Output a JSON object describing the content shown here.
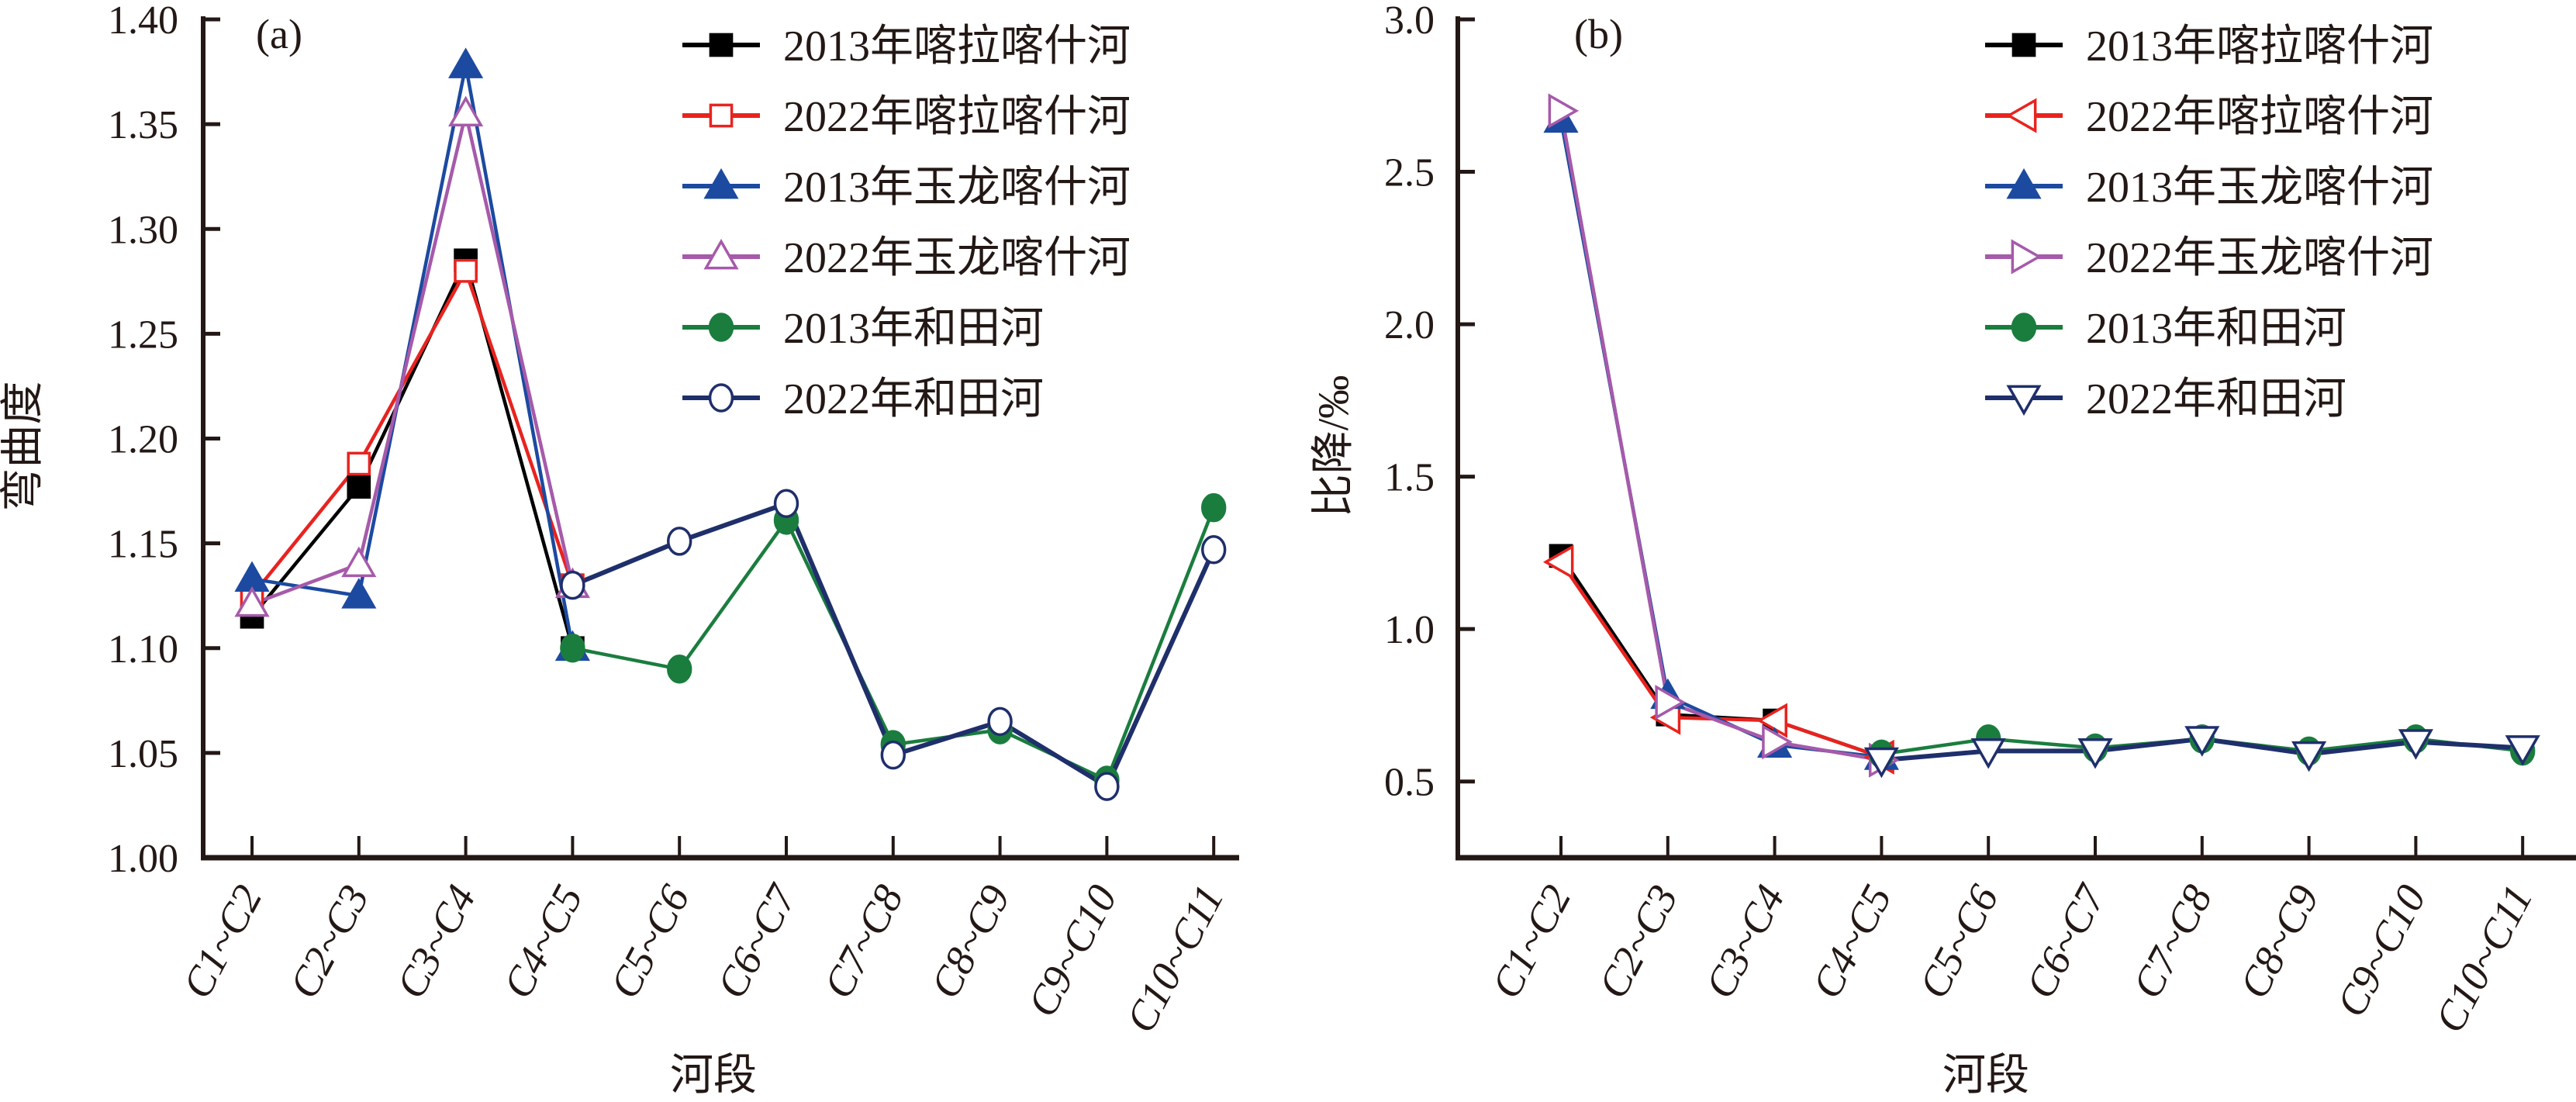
{
  "chart_data": [
    {
      "type": "line",
      "panel_label": "(a)",
      "title": "",
      "xlabel": "河段",
      "ylabel": "弯曲度",
      "ylim": [
        1.0,
        1.4
      ],
      "yticks": [
        1.0,
        1.05,
        1.1,
        1.15,
        1.2,
        1.25,
        1.3,
        1.35,
        1.4
      ],
      "ytick_labels": [
        "1.00",
        "1.05",
        "1.10",
        "1.15",
        "1.20",
        "1.25",
        "1.30",
        "1.35",
        "1.40"
      ],
      "grid": false,
      "legend_position": "top-right",
      "categories": [
        "C1~C2",
        "C2~C3",
        "C3~C4",
        "C4~C5",
        "C5~C6",
        "C6~C7",
        "C7~C8",
        "C8~C9",
        "C9~C10",
        "C10~C11"
      ],
      "series": [
        {
          "name": "2013年喀拉喀什河",
          "color": "#000000",
          "marker": "square",
          "filled": true,
          "values": [
            1.115,
            1.177,
            1.285,
            1.1,
            null,
            null,
            null,
            null,
            null,
            null
          ]
        },
        {
          "name": "2022年喀拉喀什河",
          "color": "#e8231f",
          "marker": "square",
          "filled": false,
          "values": [
            1.125,
            1.188,
            1.28,
            1.13,
            null,
            null,
            null,
            null,
            null,
            null
          ]
        },
        {
          "name": "2013年玉龙喀什河",
          "color": "#1c4aa0",
          "marker": "triangle-up",
          "filled": true,
          "values": [
            1.133,
            1.125,
            1.378,
            1.1,
            null,
            null,
            null,
            null,
            null,
            null
          ]
        },
        {
          "name": "2022年玉龙喀什河",
          "color": "#a65aaa",
          "marker": "triangle-up",
          "filled": false,
          "values": [
            1.121,
            1.14,
            1.355,
            1.13,
            null,
            null,
            null,
            null,
            null,
            null
          ]
        },
        {
          "name": "2013年和田河",
          "color": "#1a7d3e",
          "marker": "circle",
          "filled": true,
          "values": [
            null,
            null,
            null,
            1.1,
            1.09,
            1.161,
            1.054,
            1.061,
            1.037,
            1.167
          ]
        },
        {
          "name": "2022年和田河",
          "color": "#1f2f6b",
          "marker": "circle",
          "filled": false,
          "values": [
            null,
            null,
            null,
            1.13,
            1.151,
            1.169,
            1.049,
            1.065,
            1.034,
            1.147
          ]
        }
      ]
    },
    {
      "type": "line",
      "panel_label": "(b)",
      "title": "",
      "xlabel": "河段",
      "ylabel": "比降/‰",
      "ylim": [
        0.25,
        3.0
      ],
      "yticks": [
        0.5,
        1.0,
        1.5,
        2.0,
        2.5,
        3.0
      ],
      "ytick_labels": [
        "0.5",
        "1.0",
        "1.5",
        "2.0",
        "2.5",
        "3.0"
      ],
      "grid": false,
      "legend_position": "top-right",
      "categories": [
        "C1~C2",
        "C2~C3",
        "C3~C4",
        "C4~C5",
        "C5~C6",
        "C6~C7",
        "C7~C8",
        "C8~C9",
        "C9~C10",
        "C10~C11"
      ],
      "series": [
        {
          "name": "2013年喀拉喀什河",
          "color": "#000000",
          "marker": "square",
          "filled": true,
          "values": [
            1.24,
            0.72,
            0.7,
            0.58,
            null,
            null,
            null,
            null,
            null,
            null
          ]
        },
        {
          "name": "2022年喀拉喀什河",
          "color": "#e8231f",
          "marker": "triangle-left",
          "filled": false,
          "values": [
            1.22,
            0.71,
            0.7,
            0.58,
            null,
            null,
            null,
            null,
            null,
            null
          ]
        },
        {
          "name": "2013年玉龙喀什河",
          "color": "#1c4aa0",
          "marker": "triangle-up",
          "filled": true,
          "values": [
            2.67,
            0.78,
            0.62,
            0.58,
            null,
            null,
            null,
            null,
            null,
            null
          ]
        },
        {
          "name": "2022年玉龙喀什河",
          "color": "#a65aaa",
          "marker": "triangle-right",
          "filled": false,
          "values": [
            2.7,
            0.76,
            0.63,
            0.57,
            null,
            null,
            null,
            null,
            null,
            null
          ]
        },
        {
          "name": "2013年和田河",
          "color": "#1a7d3e",
          "marker": "circle",
          "filled": true,
          "values": [
            null,
            null,
            null,
            0.59,
            0.64,
            0.61,
            0.64,
            0.6,
            0.64,
            0.6
          ]
        },
        {
          "name": "2022年和田河",
          "color": "#1f2f6b",
          "marker": "triangle-down",
          "filled": false,
          "values": [
            null,
            null,
            null,
            0.57,
            0.6,
            0.6,
            0.64,
            0.59,
            0.63,
            0.61
          ]
        }
      ]
    }
  ]
}
